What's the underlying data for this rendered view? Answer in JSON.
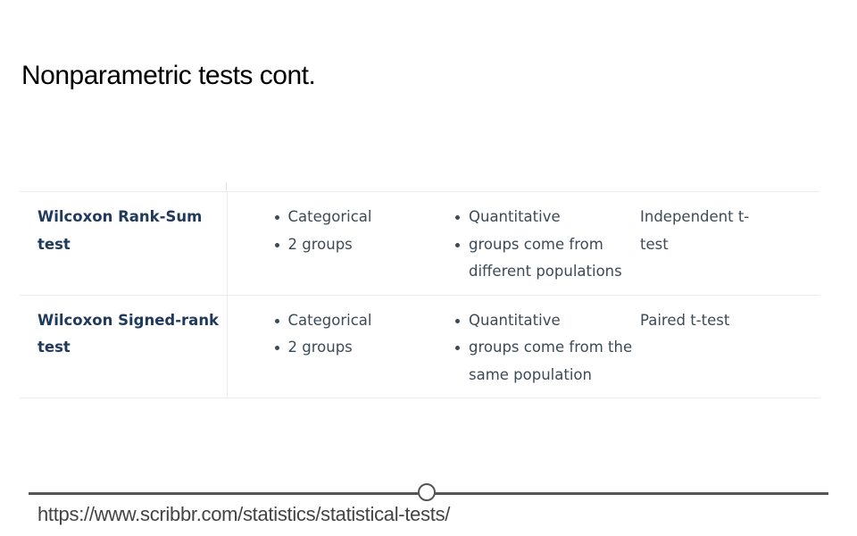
{
  "title": "Nonparametric tests cont.",
  "rows": [
    {
      "test": "Wilcoxon Rank-Sum test",
      "predictor": [
        "Categorical",
        "2 groups"
      ],
      "outcome": [
        "Quantitative",
        "groups come from different populations"
      ],
      "parametric_equivalent": "Independent t-test"
    },
    {
      "test": "Wilcoxon Signed-rank test",
      "predictor": [
        "Categorical",
        "2 groups"
      ],
      "outcome": [
        "Quantitative",
        "groups come from the same population"
      ],
      "parametric_equivalent": "Paired t-test"
    }
  ],
  "source_url": "https://www.scribbr.com/statistics/statistical-tests/"
}
